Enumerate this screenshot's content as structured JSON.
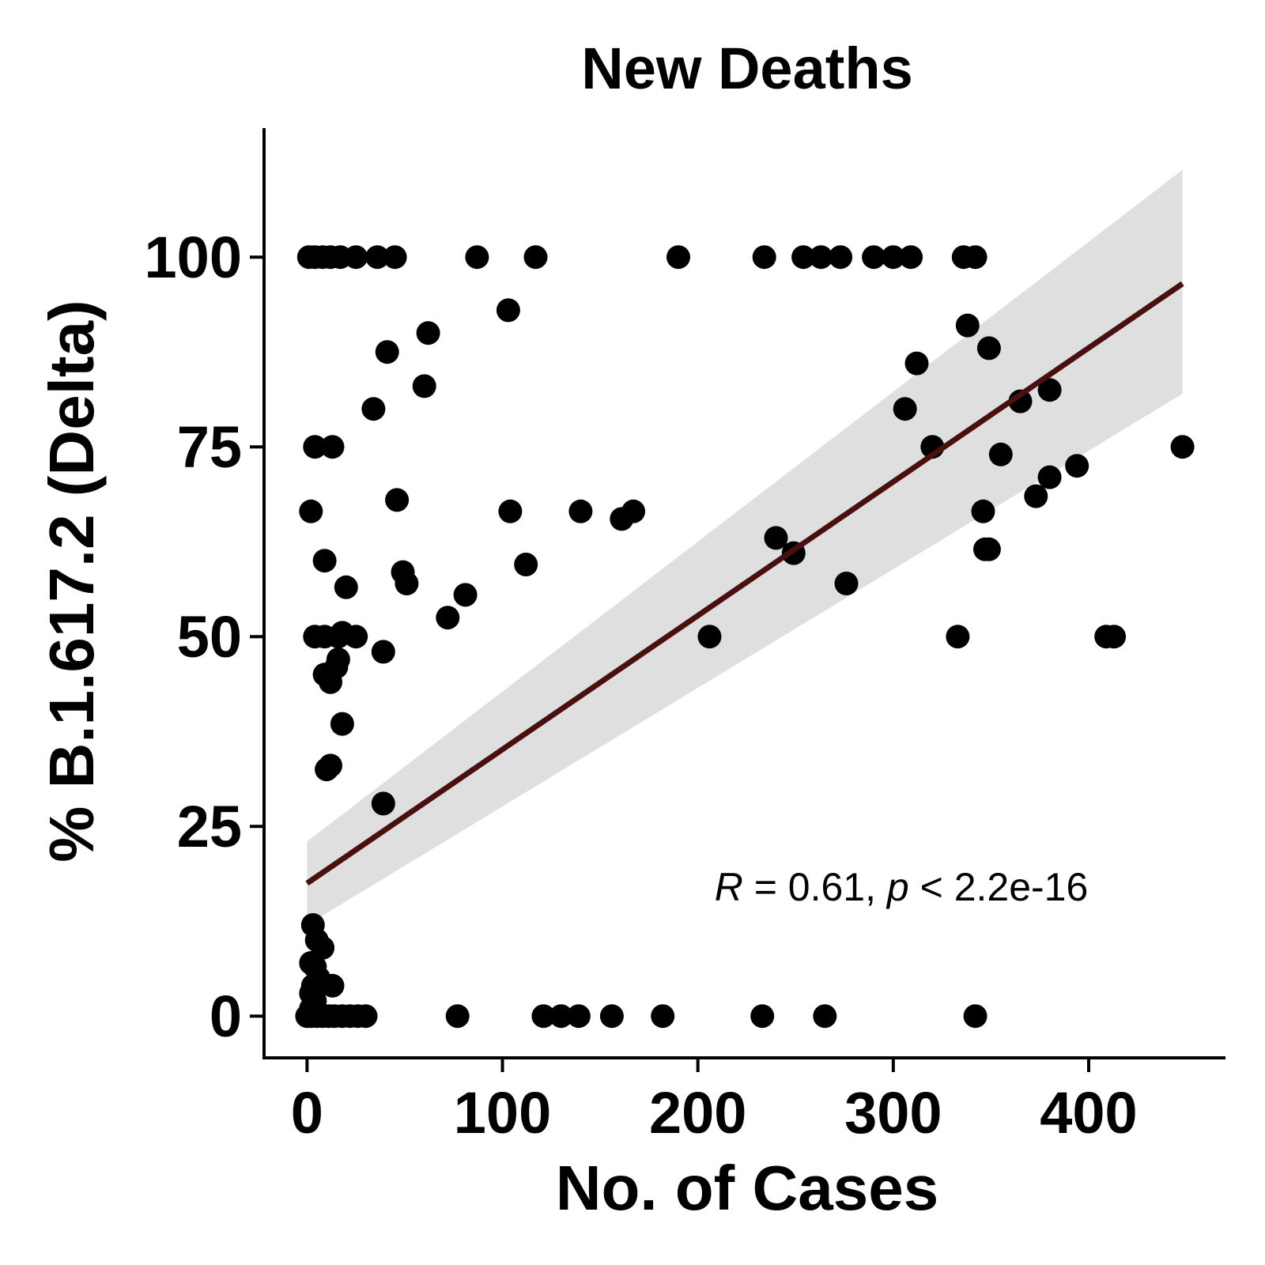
{
  "chart_data": {
    "type": "scatter",
    "title": "New Deaths",
    "xlabel": "No. of Cases",
    "ylabel": "% B.1.617.2 (Delta)",
    "xlim": [
      -22,
      470
    ],
    "ylim": [
      -5.5,
      117
    ],
    "xticks": [
      0,
      100,
      200,
      300,
      400
    ],
    "yticks": [
      0,
      25,
      50,
      75,
      100
    ],
    "grid": false,
    "annotation": {
      "r_symbol": "R",
      "r_text": " = 0.61, ",
      "p_symbol": "p",
      "p_text": " < 2.2e-16"
    },
    "regression": {
      "x": [
        0,
        448
      ],
      "y": [
        17.5,
        96.5
      ],
      "ci_x": [
        0,
        448
      ],
      "ci_upper": [
        23,
        111.5
      ],
      "ci_lower": [
        12,
        82
      ],
      "line_color": "#4a1010",
      "band_color": "#d9d9d9"
    },
    "points": {
      "color": "#000000",
      "x": [
        1,
        4,
        8,
        12,
        17,
        25,
        36,
        45,
        87,
        117,
        190,
        234,
        254,
        263,
        273,
        290,
        300,
        309,
        336,
        342,
        103,
        62,
        41,
        60,
        34,
        4,
        13,
        2,
        46,
        104,
        140,
        161,
        167,
        9,
        112,
        20,
        49,
        51,
        72,
        81,
        4,
        9,
        16,
        18,
        25,
        39,
        16,
        15,
        12,
        9,
        18,
        10,
        12,
        39,
        3,
        5,
        8,
        2,
        4,
        6,
        3,
        2,
        4,
        2,
        13,
        0,
        2,
        5,
        8,
        11,
        14,
        18,
        22,
        26,
        30,
        77,
        121,
        130,
        139,
        156,
        182,
        233,
        265,
        342,
        338,
        312,
        349,
        306,
        365,
        380,
        320,
        355,
        346,
        394,
        373,
        380,
        347,
        349,
        240,
        249,
        276,
        206,
        333,
        409,
        413,
        448
      ],
      "y": [
        100,
        100,
        100,
        100,
        100,
        100,
        100,
        100,
        100,
        100,
        100,
        100,
        100,
        100,
        100,
        100,
        100,
        100,
        100,
        100,
        93,
        90,
        87.5,
        83,
        80,
        75,
        75,
        66.5,
        68,
        66.5,
        66.5,
        65.5,
        66.5,
        60,
        59.5,
        56.5,
        58.5,
        57,
        52.5,
        55.5,
        50,
        50,
        50,
        50.5,
        50,
        48,
        47,
        46,
        44,
        45,
        38.5,
        32.5,
        33,
        28,
        12,
        10,
        9,
        7,
        6.5,
        5,
        4,
        3,
        2,
        1,
        4,
        0,
        0,
        0,
        0,
        0,
        0,
        0,
        0,
        0,
        0,
        0,
        0,
        0,
        0,
        0,
        0,
        0,
        0,
        0,
        91,
        86,
        88,
        80,
        81,
        82.5,
        75,
        74,
        66.5,
        72.5,
        68.5,
        71,
        61.5,
        61.5,
        63,
        61,
        57,
        50,
        50,
        50,
        50,
        75
      ]
    }
  }
}
